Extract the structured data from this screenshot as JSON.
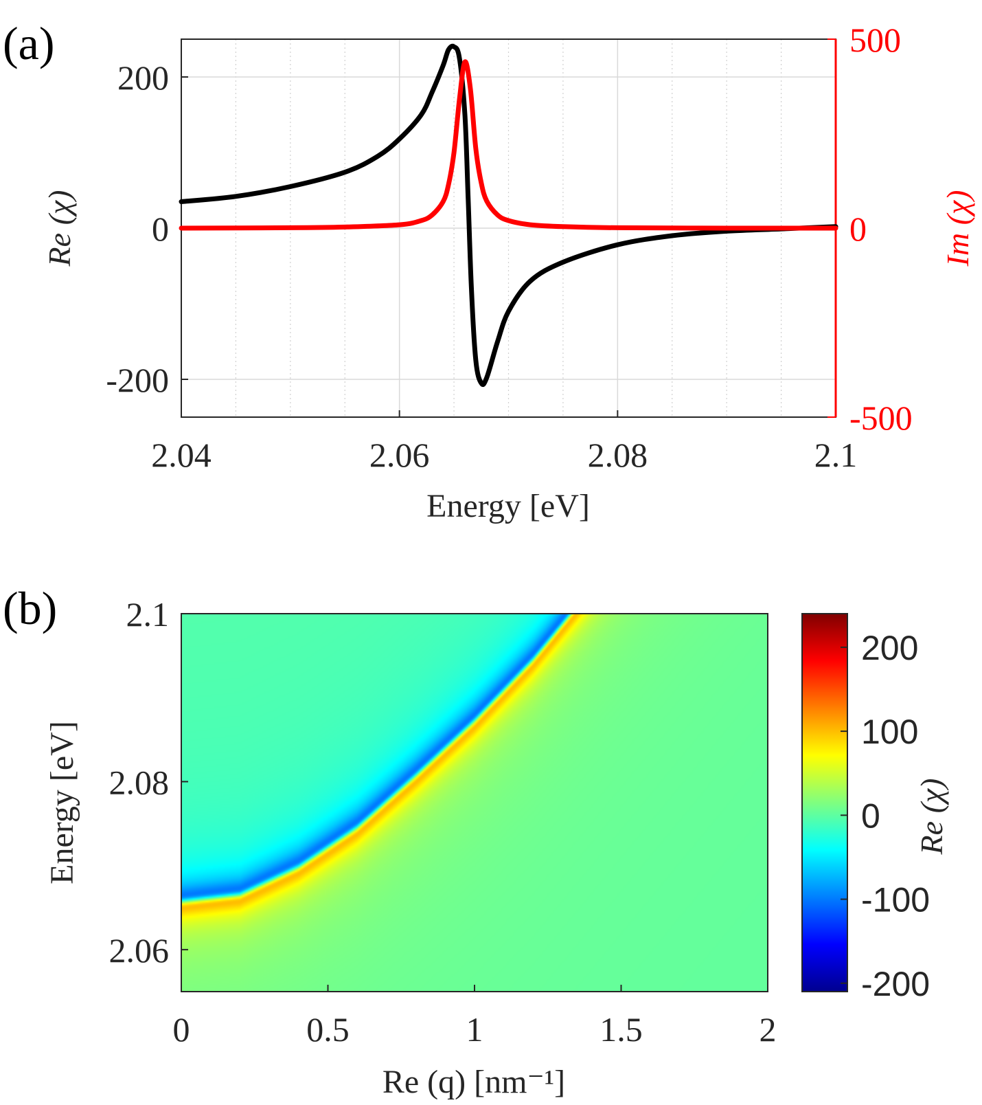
{
  "panel_a_label": "(a)",
  "panel_b_label": "(b)",
  "colors": {
    "re_series": "#000000",
    "im_series": "#ff0000",
    "grid": "#d9d9d9",
    "axis": "#262626"
  },
  "chart_data": [
    {
      "type": "line",
      "panel": "(a)",
      "xlabel": "Energy [eV]",
      "ylabel_left": "Re (χ)",
      "ylabel_right": "Im (χ)",
      "xlim": [
        2.04,
        2.1
      ],
      "ylim_left": [
        -250,
        250
      ],
      "ylim_right": [
        -500,
        500
      ],
      "xticks": [
        "2.04",
        "2.06",
        "2.08",
        "2.1"
      ],
      "xtick_values": [
        2.04,
        2.06,
        2.08,
        2.1
      ],
      "xminor_values": [
        2.045,
        2.05,
        2.055,
        2.065,
        2.07,
        2.075,
        2.085,
        2.09,
        2.095
      ],
      "yticks_left": [
        "-200",
        "0",
        "200"
      ],
      "ytick_values_left": [
        -200,
        0,
        200
      ],
      "yticks_right": [
        "-500",
        "0",
        "500"
      ],
      "ytick_values_right": [
        -500,
        0,
        500
      ],
      "grid": true,
      "series": [
        {
          "axis": "left",
          "color": "#000000",
          "x": [
            2.04,
            2.045,
            2.05,
            2.055,
            2.058,
            2.06,
            2.062,
            2.063,
            2.064,
            2.0645,
            2.065,
            2.0655,
            2.066,
            2.0663,
            2.0666,
            2.067,
            2.0675,
            2.068,
            2.069,
            2.07,
            2.072,
            2.075,
            2.08,
            2.085,
            2.09,
            2.095,
            2.1
          ],
          "y": [
            35,
            42,
            55,
            74,
            95,
            118,
            150,
            180,
            215,
            236,
            240,
            225,
            150,
            40,
            -80,
            -175,
            -205,
            -198,
            -150,
            -110,
            -70,
            -45,
            -22,
            -10,
            -4,
            -1,
            2
          ]
        },
        {
          "axis": "right",
          "color": "#ff0000",
          "x": [
            2.04,
            2.05,
            2.055,
            2.06,
            2.062,
            2.063,
            2.064,
            2.0645,
            2.065,
            2.0655,
            2.066,
            2.0665,
            2.067,
            2.0675,
            2.068,
            2.069,
            2.07,
            2.072,
            2.075,
            2.08,
            2.09,
            2.1
          ],
          "y": [
            0,
            1,
            3,
            9,
            20,
            35,
            70,
            115,
            200,
            340,
            440,
            370,
            210,
            120,
            72,
            35,
            20,
            9,
            4,
            1,
            0,
            0
          ]
        }
      ]
    },
    {
      "type": "heatmap",
      "panel": "(b)",
      "xlabel": "Re (q) [nm⁻¹]",
      "ylabel": "Energy [eV]",
      "xlim": [
        0,
        2
      ],
      "ylim": [
        2.055,
        2.1
      ],
      "xticks": [
        "0",
        "0.5",
        "1",
        "1.5",
        "2"
      ],
      "xtick_values": [
        0,
        0.5,
        1,
        1.5,
        2
      ],
      "yticks": [
        "2.06",
        "2.08",
        "2.1"
      ],
      "ytick_values": [
        2.06,
        2.08,
        2.1
      ],
      "colorbar_label": "Re (χ)",
      "colorbar_ticks": [
        "-200",
        "-100",
        "0",
        "100",
        "200"
      ],
      "colorbar_tick_values": [
        -200,
        -100,
        0,
        100,
        200
      ],
      "clim": [
        -210,
        240
      ],
      "colormap": "jet",
      "resonance_curve": {
        "q": [
          0,
          0.2,
          0.4,
          0.6,
          0.8,
          1.0,
          1.2,
          1.33
        ],
        "energy": [
          2.0657,
          2.0665,
          2.0698,
          2.0745,
          2.0807,
          2.0872,
          2.0945,
          2.1
        ]
      }
    }
  ]
}
